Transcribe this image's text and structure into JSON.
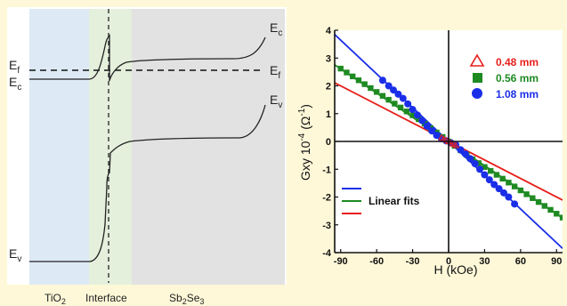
{
  "band_diagram": {
    "regions": [
      {
        "label": "TiO",
        "sub": "2",
        "rest": "",
        "color": "#ddeaf6"
      },
      {
        "label": "Interface",
        "sub": "",
        "rest": "",
        "color": "#e4f0dc"
      },
      {
        "label": "Sb",
        "sub": "2",
        "rest": "Se",
        "sub2": "3",
        "color": "#e2e2e2"
      }
    ],
    "labels": {
      "ef_left": "E",
      "ef_left_sub": "f",
      "ec_left": "E",
      "ec_left_sub": "c",
      "ev_left": "E",
      "ev_left_sub": "v",
      "ec_right": "E",
      "ec_right_sub": "c",
      "ef_right": "E",
      "ef_right_sub": "f",
      "ev_right": "E",
      "ev_right_sub": "v"
    },
    "colors": {
      "band": "#222222",
      "fermi": "#111111"
    }
  },
  "chart_data": {
    "type": "scatter",
    "xlabel": "H (kOe)",
    "ylabel_main": "Gxy 10",
    "ylabel_exp": "-4",
    "ylabel_unit": "(Ω",
    "ylabel_unit_exp": "-1",
    "ylabel_close": ")",
    "xlim": [
      -95,
      95
    ],
    "ylim": [
      -4,
      4
    ],
    "x_ticks": [
      "-90",
      "-60",
      "-30",
      "0",
      "30",
      "60",
      "90"
    ],
    "x_tick_values": [
      -90,
      -60,
      -30,
      0,
      30,
      60,
      90
    ],
    "y_ticks": [
      "4",
      "3",
      "2",
      "1",
      "0",
      "-1",
      "-2",
      "-3",
      "-4"
    ],
    "y_tick_values": [
      4,
      3,
      2,
      1,
      0,
      -1,
      -2,
      -3,
      -4
    ],
    "legend": [
      {
        "name": "0.48 mm",
        "marker": "triangle-open",
        "color": "#e8201c"
      },
      {
        "name": "0.56 mm",
        "marker": "square",
        "color": "#1e8a22"
      },
      {
        "name": "1.08 mm",
        "marker": "circle",
        "color": "#1a2ee8"
      }
    ],
    "fit_legend": {
      "label": "Linear fits",
      "colors": [
        "#1a2ee8",
        "#1e8a22",
        "#e8201c"
      ]
    },
    "series": [
      {
        "name": "0.56 mm",
        "marker": "square",
        "color": "#1e8a22",
        "x": [
          -90,
          -85,
          -80,
          -75,
          -70,
          -65,
          -60,
          -55,
          -50,
          -45,
          -40,
          -35,
          -30,
          -25,
          -20,
          -15,
          -10,
          -5,
          0,
          5,
          10,
          15,
          20,
          25,
          30,
          35,
          40,
          45,
          50,
          55,
          60,
          65,
          70,
          75,
          80,
          85,
          90,
          95
        ],
        "y": [
          2.62,
          2.48,
          2.34,
          2.2,
          2.06,
          1.92,
          1.78,
          1.64,
          1.5,
          1.36,
          1.22,
          1.08,
          0.94,
          0.8,
          0.64,
          0.48,
          0.32,
          0.16,
          0.0,
          -0.16,
          -0.32,
          -0.48,
          -0.64,
          -0.78,
          -0.92,
          -1.06,
          -1.2,
          -1.34,
          -1.48,
          -1.62,
          -1.76,
          -1.9,
          -2.04,
          -2.18,
          -2.32,
          -2.46,
          -2.6,
          -2.74
        ]
      },
      {
        "name": "1.08 mm",
        "marker": "circle",
        "color": "#1a2ee8",
        "x": [
          -55,
          -50,
          -46,
          -42,
          -38,
          -34,
          -30,
          -26,
          -22,
          -18,
          -14,
          -10,
          -6,
          -2,
          2,
          6,
          10,
          14,
          18,
          22,
          26,
          30,
          34,
          38,
          42,
          46,
          50,
          55
        ],
        "y": [
          2.2,
          2.0,
          1.85,
          1.7,
          1.55,
          1.35,
          1.15,
          0.95,
          0.75,
          0.55,
          0.38,
          0.22,
          0.1,
          0.02,
          -0.05,
          -0.12,
          -0.3,
          -0.45,
          -0.62,
          -0.8,
          -1.0,
          -1.2,
          -1.38,
          -1.55,
          -1.7,
          -1.85,
          -2.0,
          -2.25
        ]
      },
      {
        "name": "0.48 mm",
        "marker": "triangle-open",
        "color": "#e8201c",
        "x": [
          -6,
          -4,
          -2,
          0,
          2,
          4,
          6
        ],
        "y": [
          0.14,
          0.09,
          0.05,
          0.0,
          -0.05,
          -0.09,
          -0.14
        ]
      }
    ],
    "fits": [
      {
        "color": "#1a2ee8",
        "slope": -0.0405
      },
      {
        "color": "#1e8a22",
        "slope": -0.029
      },
      {
        "color": "#e8201c",
        "slope": -0.0222
      }
    ]
  }
}
